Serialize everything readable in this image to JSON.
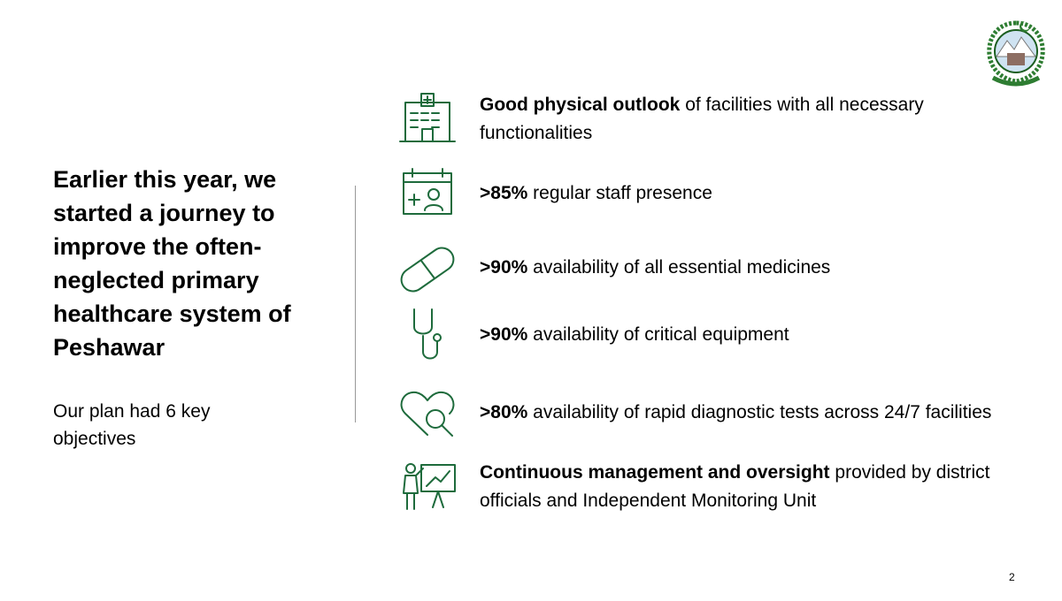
{
  "heading": "Earlier this year, we started a journey to improve the often-neglected primary healthcare system of Peshawar",
  "subheading": "Our plan had 6 key objectives",
  "objectives": [
    {
      "bold": "Good physical outlook",
      "text": "of facilities with all necessary functionalities"
    },
    {
      "bold": ">85%",
      "text": "regular staff presence"
    },
    {
      "bold": ">90%",
      "text": "availability of all essential medicines"
    },
    {
      "bold": ">90%",
      "text": "availability of critical equipment"
    },
    {
      "bold": ">80%",
      "text": "availability of rapid diagnostic tests across 24/7 facilities"
    },
    {
      "bold": "Continuous management and oversight",
      "text": "provided by district officials and Independent Monitoring Unit"
    }
  ],
  "page_number": "2"
}
